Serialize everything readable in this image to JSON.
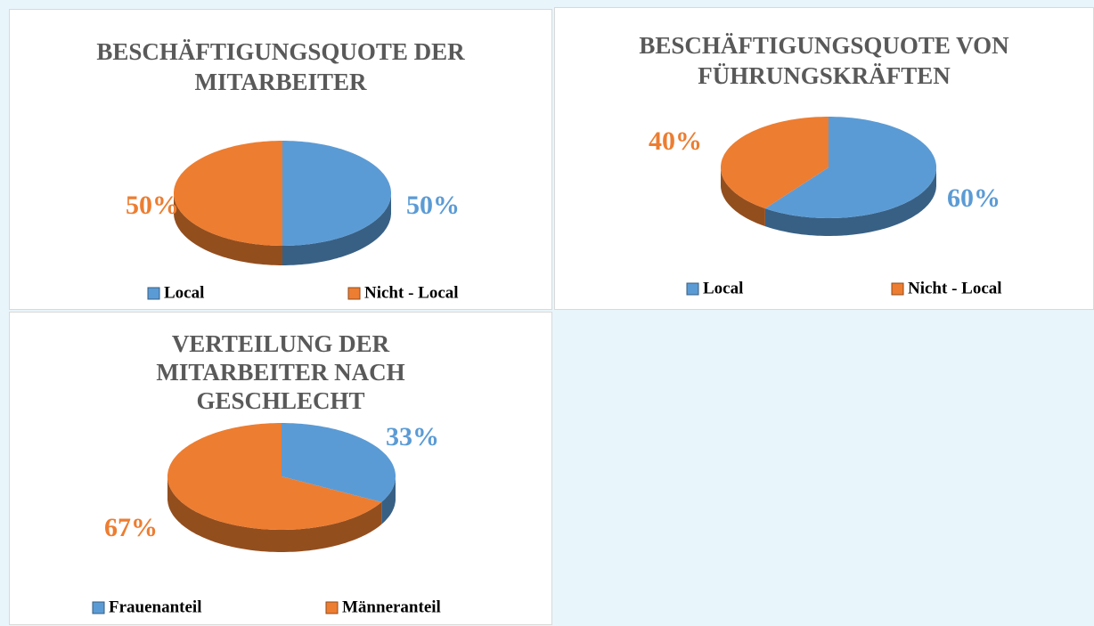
{
  "chart_data": [
    {
      "type": "pie",
      "title": "BESCHÄFTIGUNGSQUOTE DER MITARBEITER",
      "categories": [
        "Local",
        "Nicht - Local"
      ],
      "values": [
        50,
        50
      ],
      "value_labels": [
        "50%",
        "50%"
      ],
      "colors": [
        "#5b9bd5",
        "#ed7d31"
      ],
      "legend": "bottom"
    },
    {
      "type": "pie",
      "title": "BESCHÄFTIGUNGSQUOTE VON FÜHRUNGSKRÄFTEN",
      "categories": [
        "Local",
        "Nicht - Local"
      ],
      "values": [
        60,
        40
      ],
      "value_labels": [
        "60%",
        "40%"
      ],
      "colors": [
        "#5b9bd5",
        "#ed7d31"
      ],
      "legend": "bottom"
    },
    {
      "type": "pie",
      "title": "VERTEILUNG DER MITARBEITER NACH GESCHLECHT",
      "categories": [
        "Frauenanteil",
        "Männeranteil"
      ],
      "values": [
        33,
        67
      ],
      "value_labels": [
        "33%",
        "67%"
      ],
      "colors": [
        "#5b9bd5",
        "#ed7d31"
      ],
      "legend": "bottom"
    }
  ]
}
